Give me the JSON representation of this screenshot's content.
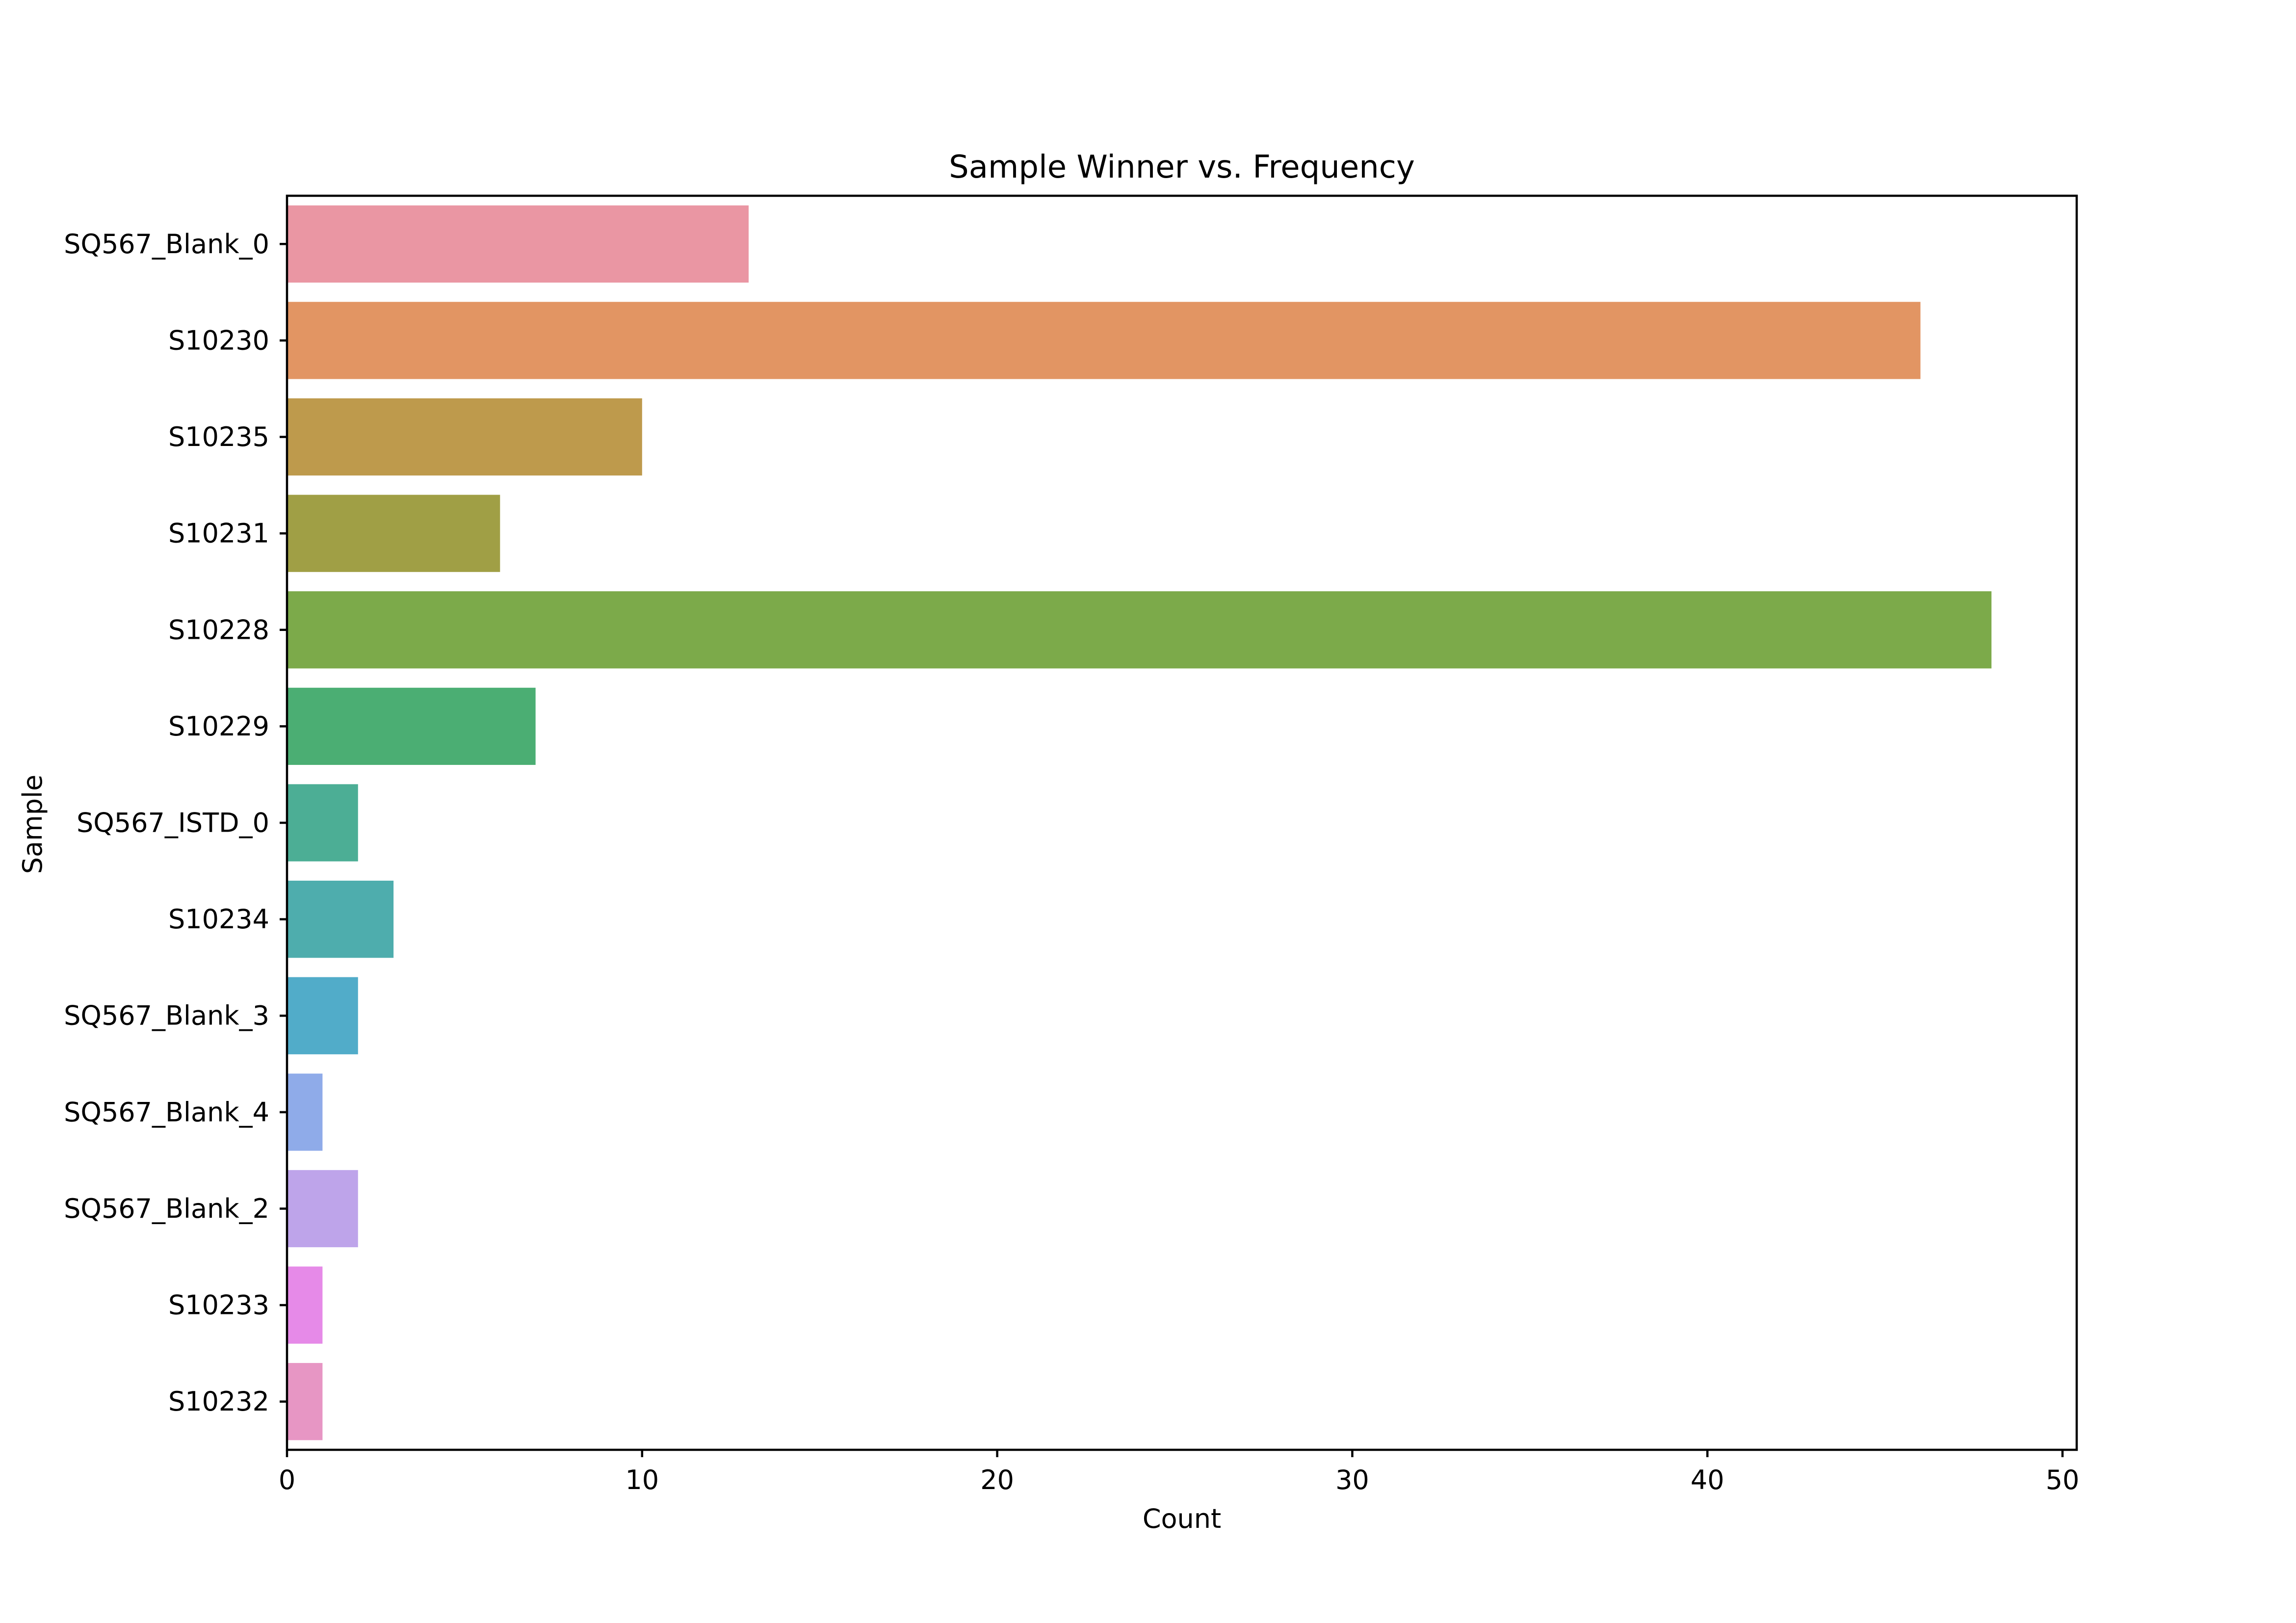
{
  "chart_data": {
    "type": "bar",
    "orientation": "horizontal",
    "title": "Sample Winner vs. Frequency",
    "xlabel": "Count",
    "ylabel": "Sample",
    "xlim": [
      0,
      50.4
    ],
    "xticks": [
      0,
      10,
      20,
      30,
      40,
      50
    ],
    "grid": false,
    "legend": "none",
    "categories": [
      "SQ567_Blank_0",
      "S10230",
      "S10235",
      "S10231",
      "S10228",
      "S10229",
      "SQ567_ISTD_0",
      "S10234",
      "SQ567_Blank_3",
      "SQ567_Blank_4",
      "SQ567_Blank_2",
      "S10233",
      "S10232"
    ],
    "values": [
      13,
      46,
      10,
      6,
      48,
      7,
      2,
      3,
      2,
      1,
      2,
      1,
      1
    ],
    "colors": [
      "#ea96a3",
      "#e29563",
      "#be9a4c",
      "#a09f45",
      "#7caa4a",
      "#4bae73",
      "#4cae95",
      "#4eadad",
      "#51acc9",
      "#8fabe9",
      "#bea4ea",
      "#e68ae8",
      "#e796c4"
    ]
  }
}
